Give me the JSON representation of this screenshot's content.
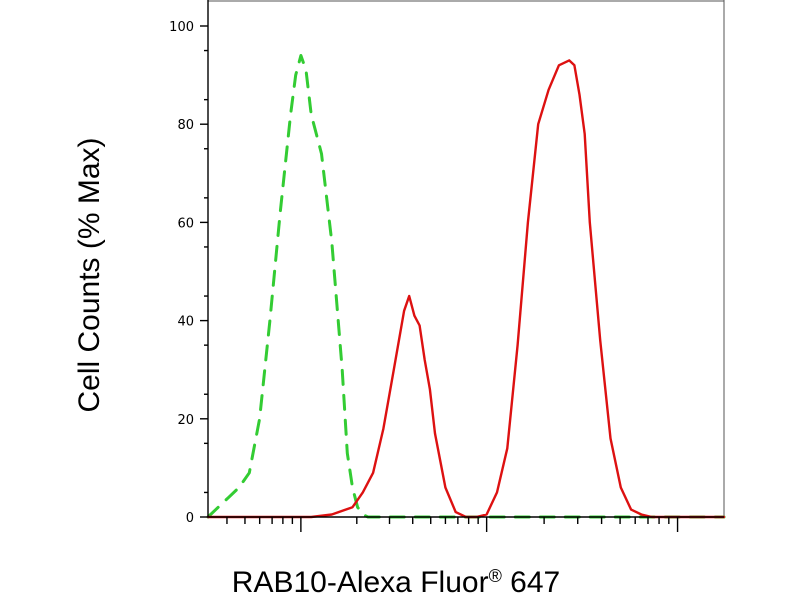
{
  "chart_data": {
    "type": "line",
    "xlabel": "RAB10-Alexa Fluor® 647",
    "xlabel_main": "RAB10-Alexa Fluor",
    "xlabel_reg": "®",
    "xlabel_suffix": " 647",
    "ylabel": "Cell Counts (% Max)",
    "ylim": [
      0,
      100
    ],
    "xlim": [
      0,
      100
    ],
    "x_scale": "log-style decades, no tick labels",
    "yticks": [
      "0",
      "20",
      "40",
      "60",
      "80",
      "100"
    ],
    "grid": false,
    "series": [
      {
        "style": "dashed",
        "color": "#33cc33",
        "x": [
          0,
          2,
          4,
          6,
          8,
          10,
          12,
          14,
          16,
          17,
          18,
          19,
          20,
          22,
          24,
          26,
          27,
          28,
          29,
          30,
          31,
          32,
          33,
          34,
          35,
          36,
          37,
          38,
          40,
          45,
          50,
          55,
          60,
          70,
          80,
          90,
          100
        ],
        "y": [
          0,
          2,
          4,
          6,
          9,
          20,
          40,
          62,
          82,
          90,
          94,
          91,
          82,
          74,
          56,
          30,
          13,
          6,
          2,
          0.5,
          0,
          0,
          0,
          0,
          0,
          0,
          0,
          0,
          0,
          0,
          0,
          0,
          0,
          0,
          0,
          0,
          0
        ]
      },
      {
        "style": "solid",
        "color": "#dd1111",
        "x": [
          0,
          20,
          24,
          28,
          30,
          32,
          34,
          36,
          38,
          39,
          40,
          41,
          42,
          43,
          44,
          46,
          48,
          50,
          52,
          54,
          56,
          58,
          60,
          62,
          64,
          66,
          68,
          70,
          71,
          72,
          73,
          74,
          76,
          78,
          80,
          82,
          84,
          86,
          88,
          90,
          95,
          100
        ],
        "y": [
          0,
          0,
          0.5,
          2,
          5,
          9,
          18,
          30,
          42,
          45,
          41,
          39,
          32,
          26,
          17,
          6,
          1,
          0,
          0,
          0.5,
          5,
          14,
          35,
          60,
          80,
          87,
          92,
          93,
          92,
          86,
          78,
          60,
          36,
          16,
          6,
          1.5,
          0.5,
          0,
          0,
          0,
          0,
          0
        ]
      }
    ]
  }
}
